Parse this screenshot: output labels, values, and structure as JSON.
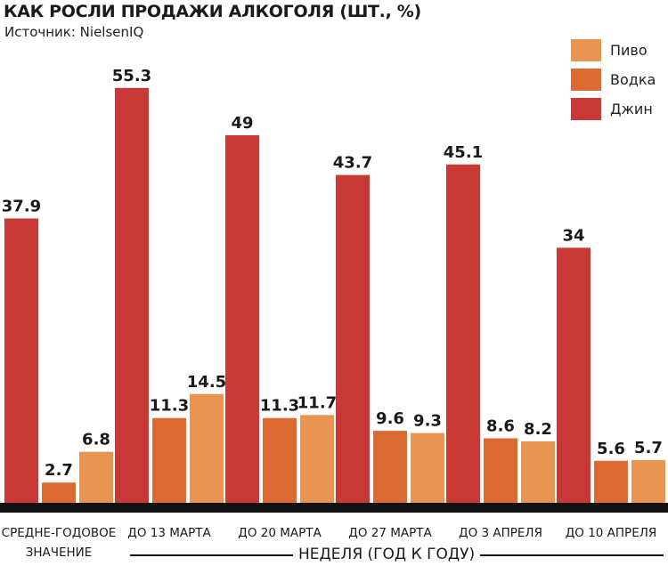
{
  "chart_data": {
    "type": "bar",
    "title": "КАК РОСЛИ ПРОДАЖИ АЛКОГОЛЯ (ШТ., %)",
    "source": "Источник: NielsenIQ",
    "xlabel": "НЕДЕЛЯ (ГОД К ГОДУ)",
    "categories": [
      [
        "СРЕДНЕ-ГОДОВОЕ",
        "ЗНАЧЕНИЕ"
      ],
      [
        "ДО 13 МАРТА"
      ],
      [
        "ДО 20 МАРТА"
      ],
      [
        "ДО 27 МАРТА"
      ],
      [
        "ДО 3 АПРЕЛЯ"
      ],
      [
        "ДО 10 АПРЕЛЯ"
      ]
    ],
    "series": [
      {
        "name": "Джин",
        "color": "#c93a36",
        "values": [
          37.9,
          55.3,
          49,
          43.7,
          45.1,
          34
        ],
        "labels": [
          "37.9",
          "55.3",
          "49",
          "43.7",
          "45.1",
          "34"
        ]
      },
      {
        "name": "Водка",
        "color": "#de6a33",
        "values": [
          2.7,
          11.3,
          11.3,
          9.6,
          8.6,
          5.6
        ],
        "labels": [
          "2.7",
          "11.3",
          "11.3",
          "9.6",
          "8.6",
          "5.6"
        ]
      },
      {
        "name": "Пиво",
        "color": "#e99450",
        "values": [
          6.8,
          14.5,
          11.7,
          9.3,
          8.2,
          5.7
        ],
        "labels": [
          "6.8",
          "14.5",
          "11.7",
          "9.3",
          "8.2",
          "5.7"
        ]
      }
    ],
    "legend": [
      {
        "name": "Пиво",
        "color": "#e99450"
      },
      {
        "name": "Водка",
        "color": "#de6a33"
      },
      {
        "name": "Джин",
        "color": "#c93a36"
      }
    ],
    "legend_position": "top-right",
    "ylim": [
      0,
      60
    ],
    "grid": false
  }
}
